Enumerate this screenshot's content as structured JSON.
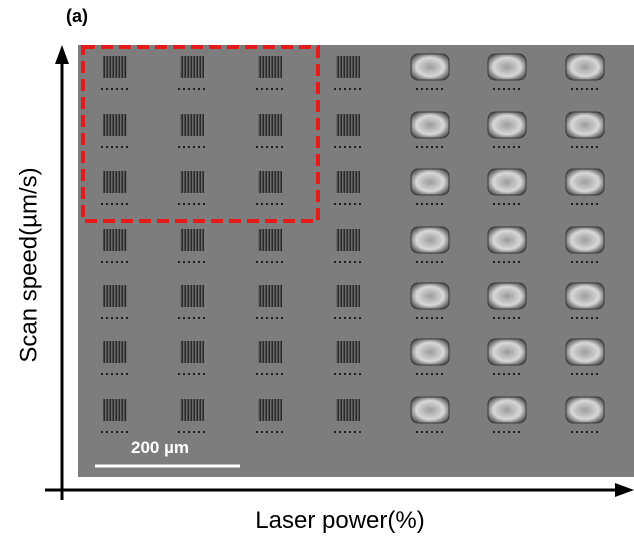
{
  "figure": {
    "panel_label": "(a)",
    "y_axis_label": "Scan speed(µm/s)",
    "x_axis_label": "Laser power(%)",
    "scale_bar_label": "200 µm"
  }
}
